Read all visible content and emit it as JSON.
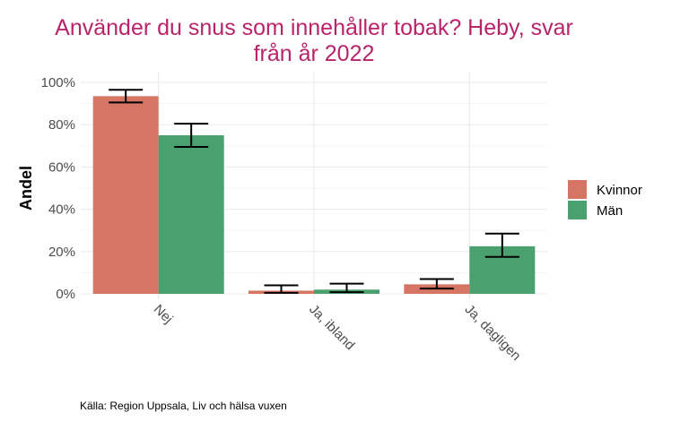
{
  "chart_data": {
    "type": "bar",
    "title_lines": [
      "Använder du snus som innehåller tobak? Heby, svar",
      "från år 2022"
    ],
    "ylabel": "Andel",
    "xlabel": "",
    "categories": [
      "Nej",
      "Ja, ibland",
      "Ja, dagligen"
    ],
    "y_ticks": [
      "0%",
      "20%",
      "40%",
      "60%",
      "80%",
      "100%"
    ],
    "ylim": [
      0,
      1.0
    ],
    "grid": true,
    "legend_position": "right",
    "series": [
      {
        "name": "Kvinnor",
        "color": "#D77565",
        "values": [
          0.935,
          0.015,
          0.045
        ],
        "ci_low": [
          0.905,
          0.005,
          0.025
        ],
        "ci_high": [
          0.965,
          0.04,
          0.07
        ]
      },
      {
        "name": "Män",
        "color": "#4AA06E",
        "values": [
          0.75,
          0.02,
          0.225
        ],
        "ci_low": [
          0.695,
          0.008,
          0.175
        ],
        "ci_high": [
          0.805,
          0.048,
          0.285
        ]
      }
    ],
    "caption": "Källa: Region Uppsala, Liv och hälsa vuxen"
  }
}
